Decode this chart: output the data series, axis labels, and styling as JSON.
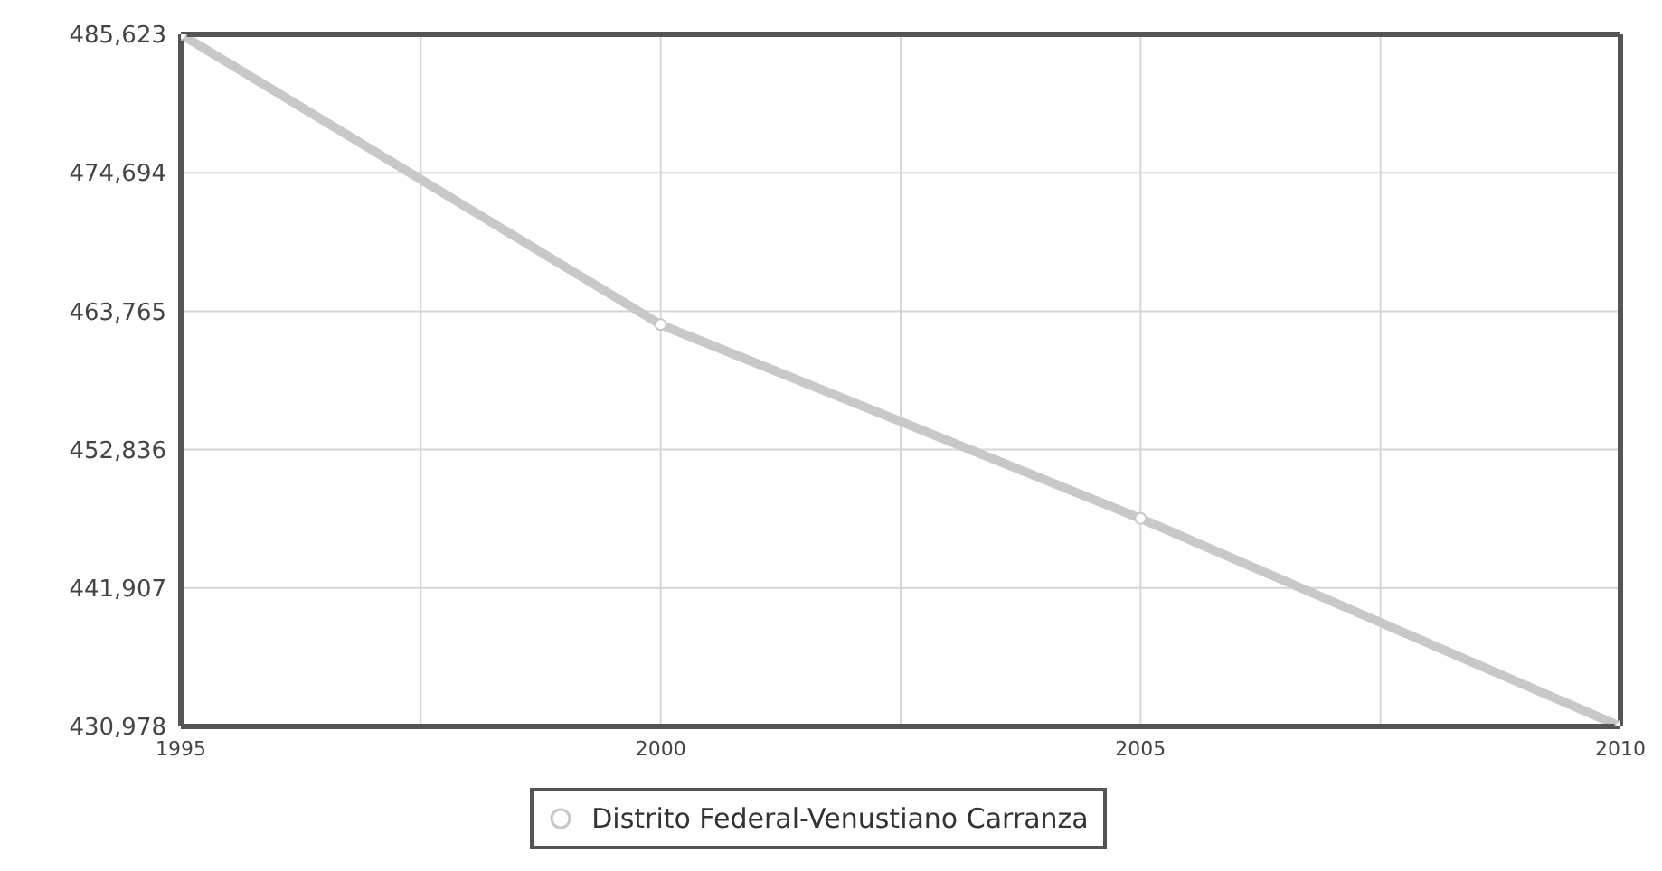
{
  "chart_data": {
    "type": "line",
    "x": [
      1995,
      2000,
      2005,
      2010
    ],
    "series": [
      {
        "name": "Distrito Federal-Venustiano Carranza",
        "color": "#c8c8c8",
        "values": [
          485623,
          462700,
          447400,
          430978
        ]
      }
    ],
    "xlim": [
      1995,
      2010
    ],
    "xticks": [
      1995,
      {
        "value": 1997.5,
        "label": null
      },
      2000,
      {
        "value": 2002.5,
        "label": null
      },
      2005,
      {
        "value": 2007.5,
        "label": null
      },
      2010
    ],
    "ylim": [
      430978,
      485623
    ],
    "yticks": [
      {
        "value": 430978,
        "label": "430,978"
      },
      {
        "value": 441907,
        "label": "441,907"
      },
      {
        "value": 452836,
        "label": "452,836"
      },
      {
        "value": 463765,
        "label": "463,765"
      },
      {
        "value": 474694,
        "label": "474,694"
      },
      {
        "value": 485623,
        "label": "485,623"
      }
    ],
    "grid": true,
    "legend": "bottom",
    "marker": "circle",
    "line_style": "solid"
  }
}
